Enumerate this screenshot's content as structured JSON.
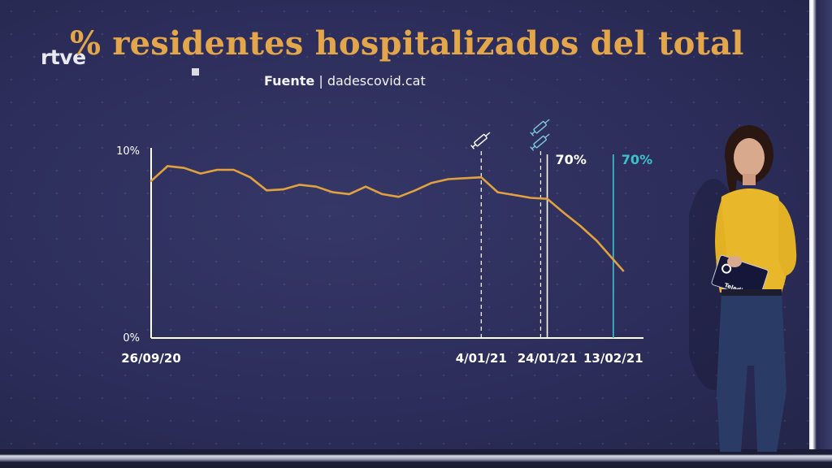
{
  "broadcaster": {
    "logo_text": "rtve"
  },
  "header": {
    "title": "% residentes hospitalizados del total",
    "source_label": "Fuente",
    "source_value": "dadescovid.cat"
  },
  "chart_data": {
    "type": "line",
    "ylabel_ticks": [
      "10%",
      "0%"
    ],
    "ylim": [
      0,
      10
    ],
    "x_tick_labels": [
      "26/09/20",
      "4/01/21",
      "24/01/21",
      "13/02/21"
    ],
    "x": [
      "2020-09-26",
      "2020-10-01",
      "2020-10-06",
      "2020-10-11",
      "2020-10-16",
      "2020-10-21",
      "2020-10-26",
      "2020-10-31",
      "2020-11-05",
      "2020-11-10",
      "2020-11-15",
      "2020-11-20",
      "2020-11-25",
      "2020-11-30",
      "2020-12-05",
      "2020-12-10",
      "2020-12-15",
      "2020-12-20",
      "2020-12-25",
      "2020-12-30",
      "2021-01-04",
      "2021-01-09",
      "2021-01-14",
      "2021-01-19",
      "2021-01-24",
      "2021-01-29",
      "2021-02-03",
      "2021-02-08",
      "2021-02-13",
      "2021-02-16"
    ],
    "values": [
      8.4,
      9.2,
      9.1,
      8.8,
      9.0,
      9.0,
      8.6,
      7.9,
      7.95,
      8.2,
      8.1,
      7.8,
      7.7,
      8.1,
      7.7,
      7.55,
      7.9,
      8.3,
      8.5,
      8.55,
      8.6,
      7.8,
      7.65,
      7.5,
      7.45,
      6.7,
      6.0,
      5.2,
      4.2,
      3.6
    ],
    "grid": false,
    "events": [
      {
        "date": "2021-01-04",
        "label": "",
        "icon": "syringe-icon",
        "doses": 1,
        "style": "dashed",
        "color": "#ffffff"
      },
      {
        "date": "2021-01-22",
        "label": "",
        "icon": "syringe-icon",
        "doses": 2,
        "style": "dashed",
        "color": "#ffffff"
      },
      {
        "date": "2021-01-24",
        "label": "70%",
        "style": "solid",
        "color": "#ffffff"
      },
      {
        "date": "2021-02-13",
        "label": "70%",
        "style": "solid",
        "color": "#3fc1cc"
      }
    ],
    "colors": {
      "line": "#e0a13e",
      "axis": "#ffffff",
      "accent": "#3fc1cc"
    }
  },
  "program": {
    "tablet_text": "Telediario"
  }
}
